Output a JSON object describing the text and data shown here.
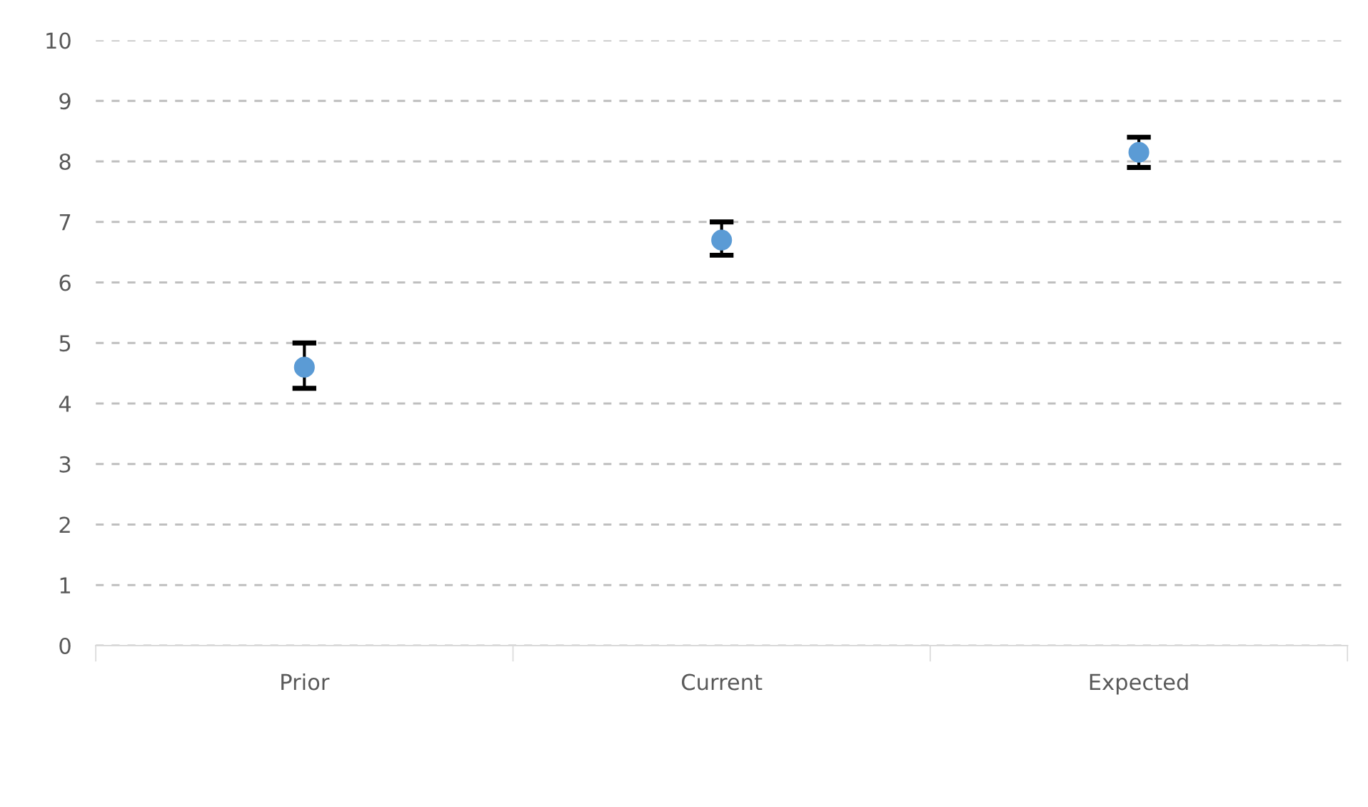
{
  "chart_data": {
    "type": "scatter",
    "categories": [
      "Prior",
      "Current",
      "Expected"
    ],
    "series": [
      {
        "color": "#5b9bd5",
        "values": [
          4.6,
          6.7,
          8.15
        ],
        "errors": [
          [
            4.25,
            5.0
          ],
          [
            6.45,
            7.0
          ],
          [
            7.9,
            8.4
          ]
        ]
      }
    ],
    "ylim": [
      0,
      10
    ],
    "yticks": [
      0,
      1,
      2,
      3,
      4,
      5,
      6,
      7,
      8,
      9,
      10
    ],
    "grid": "y",
    "marker": "circle"
  }
}
